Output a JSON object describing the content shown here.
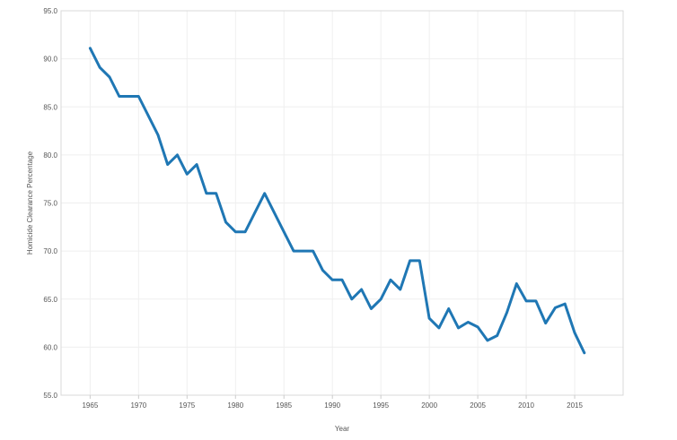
{
  "chart_data": {
    "type": "line",
    "title": "",
    "xlabel": "Year",
    "ylabel": "Homicide Clearance Percentage",
    "xlim": [
      1962,
      2020
    ],
    "ylim": [
      55,
      95
    ],
    "x_ticks": [
      1965,
      1970,
      1975,
      1980,
      1985,
      1990,
      1995,
      2000,
      2005,
      2010,
      2015
    ],
    "y_ticks": [
      55,
      60,
      65,
      70,
      75,
      80,
      85,
      90,
      95
    ],
    "x_tick_labels": [
      "1965",
      "1970",
      "1975",
      "1980",
      "1985",
      "1990",
      "1995",
      "2000",
      "2005",
      "2010",
      "2015"
    ],
    "y_tick_labels": [
      "55.0",
      "60.0",
      "65.0",
      "70.0",
      "75.0",
      "80.0",
      "85.0",
      "90.0",
      "95.0"
    ],
    "grid": true,
    "legend": "none",
    "series": [
      {
        "color": "#1f77b4",
        "x": [
          1965,
          1966,
          1967,
          1968,
          1969,
          1970,
          1971,
          1972,
          1973,
          1974,
          1975,
          1976,
          1977,
          1978,
          1979,
          1980,
          1981,
          1982,
          1983,
          1984,
          1985,
          1986,
          1987,
          1988,
          1989,
          1990,
          1991,
          1992,
          1993,
          1994,
          1995,
          1996,
          1997,
          1998,
          1999,
          2000,
          2001,
          2002,
          2003,
          2004,
          2005,
          2006,
          2007,
          2008,
          2009,
          2010,
          2011,
          2012,
          2013,
          2014,
          2015,
          2016
        ],
        "values": [
          91.1,
          89.1,
          88.1,
          86.1,
          86.1,
          86.1,
          84.1,
          82.1,
          79.0,
          80.0,
          78.0,
          79.0,
          76.0,
          76.0,
          73.0,
          72.0,
          72.0,
          74.0,
          76.0,
          74.0,
          72.0,
          70.0,
          70.0,
          70.0,
          68.0,
          67.0,
          67.0,
          65.0,
          66.0,
          64.0,
          65.0,
          67.0,
          66.0,
          69.0,
          69.0,
          63.0,
          62.0,
          64.0,
          62.0,
          62.6,
          62.1,
          60.7,
          61.2,
          63.6,
          66.6,
          64.8,
          64.8,
          62.5,
          64.1,
          64.5,
          61.5,
          59.4
        ]
      }
    ]
  }
}
